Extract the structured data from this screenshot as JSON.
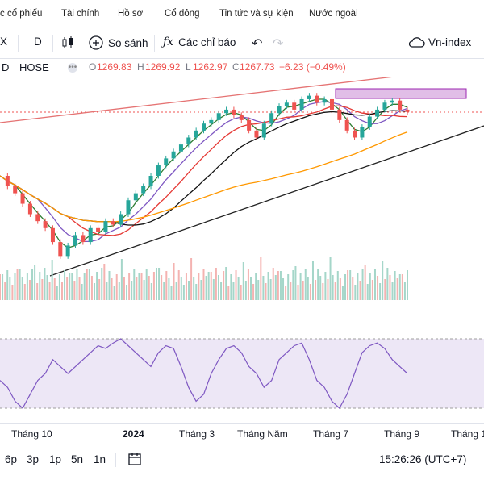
{
  "tabs": [
    "c cổ phiếu",
    "Tài chính",
    "Hồ sơ",
    "Cổ đông",
    "Tin tức và sự kiện",
    "Nước ngoài"
  ],
  "toolbar": {
    "symbol_fragment": "X",
    "interval": "D",
    "compare_label": "So sánh",
    "indicators_label": "Các chỉ báo",
    "index_label": "Vn-index"
  },
  "legend": {
    "interval": "D",
    "exchange": "HOSE",
    "o_label": "O",
    "o": "1269.83",
    "h_label": "H",
    "h": "1269.92",
    "l_label": "L",
    "l": "1262.97",
    "c_label": "C",
    "c": "1267.73",
    "change": "−6.23 (−0.49%)"
  },
  "colors": {
    "up": "#26a69a",
    "down": "#ef5350",
    "ma_fast": "#2e7d32",
    "ma_mid": "#7e57c2",
    "ma_red": "#e53935",
    "ma_black": "#111111",
    "ma_orange": "#ff9800",
    "rsi": "#7e57c2",
    "rsi_band": "#ede7f6",
    "trend_upper": "#e57373",
    "trend_lower": "#222222",
    "zone": "#e1bee7"
  },
  "x_axis": [
    "Tháng 10",
    "2024",
    "Tháng 3",
    "Tháng Năm",
    "Tháng 7",
    "Tháng 9",
    "Tháng 1"
  ],
  "bottom": {
    "ranges": [
      "6p",
      "3p",
      "1p",
      "5n",
      "1n"
    ],
    "time": "15:26:26 (UTC+7)"
  },
  "chart_data": {
    "type": "line",
    "title": "",
    "ohlc_last": {
      "open": 1269.83,
      "high": 1269.92,
      "low": 1262.97,
      "close": 1267.73,
      "change": -6.23,
      "change_pct": -0.49
    },
    "price_series": [
      1175,
      1160,
      1150,
      1135,
      1120,
      1110,
      1100,
      1080,
      1060,
      1075,
      1090,
      1080,
      1100,
      1095,
      1110,
      1105,
      1120,
      1140,
      1150,
      1160,
      1175,
      1190,
      1200,
      1210,
      1220,
      1230,
      1240,
      1250,
      1255,
      1265,
      1270,
      1262,
      1255,
      1240,
      1230,
      1250,
      1265,
      1275,
      1280,
      1270,
      1285,
      1290,
      1280,
      1285,
      1270,
      1255,
      1240,
      1230,
      1245,
      1260,
      1270,
      1280,
      1283,
      1270,
      1267
    ],
    "rsi_series": [
      45,
      40,
      30,
      25,
      35,
      45,
      50,
      60,
      55,
      50,
      55,
      60,
      65,
      70,
      68,
      72,
      75,
      70,
      65,
      60,
      55,
      65,
      70,
      68,
      55,
      40,
      30,
      35,
      50,
      60,
      68,
      70,
      65,
      55,
      50,
      40,
      45,
      60,
      65,
      70,
      72,
      60,
      45,
      40,
      30,
      25,
      35,
      50,
      65,
      70,
      72,
      68,
      60,
      55,
      50
    ]
  }
}
